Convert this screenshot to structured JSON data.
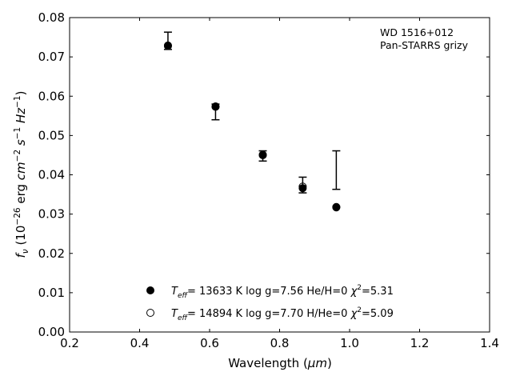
{
  "chart_data": {
    "type": "scatter",
    "annotation_lines": [
      "WD 1516+012",
      "Pan-STARRS grizy"
    ],
    "xlabel": "Wavelength (",
    "xlabel_unit": "μm",
    "xlabel_close": ")",
    "ylabel": {
      "f": "f",
      "nu": "ν",
      "open": " (10",
      "exp1": "−26",
      "erg": " erg ",
      "cm": "cm",
      "exp2": "−2",
      "s": " s",
      "exp3": "−1",
      "hz": " Hz",
      "exp4": "−1",
      "close": ")"
    },
    "xlim": [
      0.2,
      1.4
    ],
    "ylim": [
      0.0,
      0.08
    ],
    "xticks": [
      0.2,
      0.4,
      0.6,
      0.8,
      1.0,
      1.2,
      1.4
    ],
    "xtick_labels": [
      "0.2",
      "0.4",
      "0.6",
      "0.8",
      "1.0",
      "1.2",
      "1.4"
    ],
    "yticks": [
      0.0,
      0.01,
      0.02,
      0.03,
      0.04,
      0.05,
      0.06,
      0.07,
      0.08
    ],
    "ytick_labels": [
      "0.00",
      "0.01",
      "0.02",
      "0.03",
      "0.04",
      "0.05",
      "0.06",
      "0.07",
      "0.08"
    ],
    "grid": false,
    "legend_position": "lower-center",
    "observed": {
      "x": [
        0.481,
        0.617,
        0.752,
        0.866,
        0.962
      ],
      "y": [
        0.0741,
        0.056,
        0.0448,
        0.0374,
        0.0412
      ],
      "yerr": [
        0.0022,
        0.002,
        0.0013,
        0.002,
        0.0049
      ]
    },
    "series": [
      {
        "legend": {
          "t": "T",
          "sub": "eff",
          "rest": "= 13633 K  log g=7.56  He/H=0  ",
          "chi": "χ",
          "sup": "2",
          "val": "=5.31"
        },
        "marker": "filled",
        "x": [
          0.481,
          0.617,
          0.752,
          0.866,
          0.962
        ],
        "y": [
          0.0728,
          0.0573,
          0.045,
          0.0366,
          0.0317
        ]
      },
      {
        "legend": {
          "t": "T",
          "sub": "eff",
          "rest": "= 14894 K  log g=7.70  H/He=0  ",
          "chi": "χ",
          "sup": "2",
          "val": "=5.09"
        },
        "marker": "open",
        "x": [
          0.481,
          0.617,
          0.752,
          0.866,
          0.962
        ],
        "y": [
          0.0729,
          0.0574,
          0.0451,
          0.037,
          0.0318
        ]
      }
    ],
    "colors": {
      "axis": "#000000",
      "marker": "#000000",
      "background": "#ffffff"
    }
  }
}
